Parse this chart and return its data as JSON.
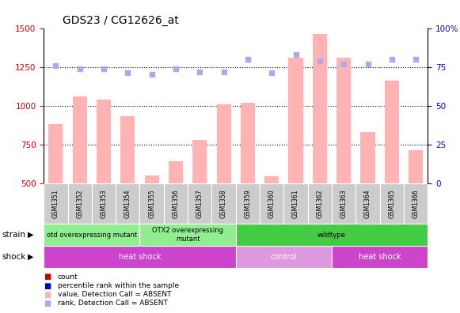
{
  "title": "GDS23 / CG12626_at",
  "samples": [
    "GSM1351",
    "GSM1352",
    "GSM1353",
    "GSM1354",
    "GSM1355",
    "GSM1356",
    "GSM1357",
    "GSM1358",
    "GSM1359",
    "GSM1360",
    "GSM1361",
    "GSM1362",
    "GSM1363",
    "GSM1364",
    "GSM1365",
    "GSM1366"
  ],
  "bar_values": [
    880,
    1060,
    1040,
    930,
    550,
    640,
    780,
    1010,
    1020,
    545,
    1310,
    1460,
    1310,
    830,
    1160,
    715
  ],
  "dot_values_pct": [
    76,
    74,
    74,
    71,
    70,
    74,
    72,
    72,
    80,
    71,
    83,
    79,
    77,
    77,
    80,
    80
  ],
  "bar_color_absent": "#ffb3b3",
  "dot_color_absent": "#aaaaee",
  "ylim_left": [
    500,
    1500
  ],
  "ylim_right": [
    0,
    100
  ],
  "yticks_left": [
    500,
    750,
    1000,
    1250,
    1500
  ],
  "yticks_right": [
    0,
    25,
    50,
    75,
    100
  ],
  "strain_groups": [
    {
      "label": "otd overexpressing mutant",
      "start": 0,
      "end": 4,
      "color": "#90ee90"
    },
    {
      "label": "OTX2 overexpressing\nmutant",
      "start": 4,
      "end": 8,
      "color": "#90ee90"
    },
    {
      "label": "wildtype",
      "start": 8,
      "end": 16,
      "color": "#44cc44"
    }
  ],
  "shock_groups": [
    {
      "label": "heat shock",
      "start": 0,
      "end": 8,
      "color": "#cc44cc"
    },
    {
      "label": "control",
      "start": 8,
      "end": 12,
      "color": "#dd99dd"
    },
    {
      "label": "heat shock",
      "start": 12,
      "end": 16,
      "color": "#cc44cc"
    }
  ],
  "legend_items": [
    {
      "color": "#cc0000",
      "label": "count"
    },
    {
      "color": "#0000cc",
      "label": "percentile rank within the sample"
    },
    {
      "color": "#ffb3b3",
      "label": "value, Detection Call = ABSENT"
    },
    {
      "color": "#aaaaee",
      "label": "rank, Detection Call = ABSENT"
    }
  ],
  "title_fontsize": 10,
  "axis_color_left": "#cc0000",
  "axis_color_right": "#0000cc",
  "bar_bottom": 0
}
